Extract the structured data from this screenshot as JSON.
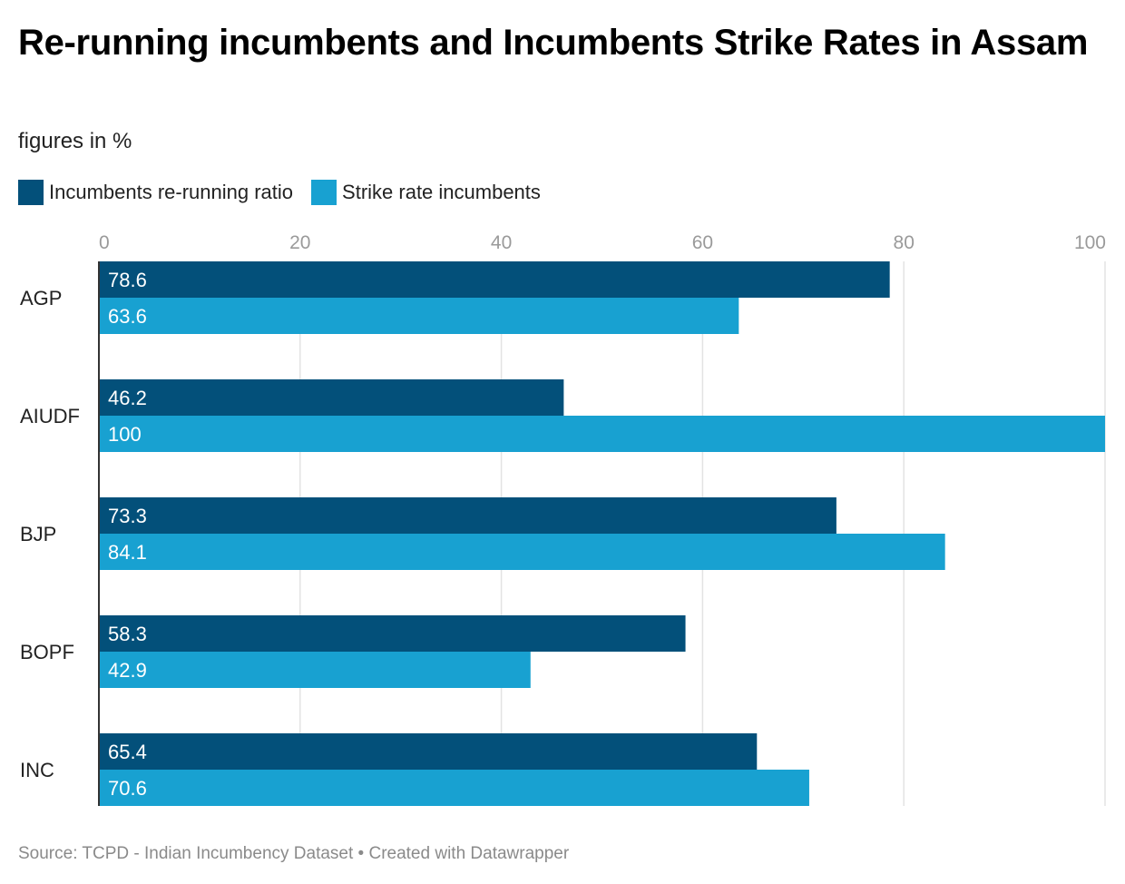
{
  "header": {
    "title": "Re-running incumbents and Incumbents Strike Rates in Assam",
    "subtitle": "figures in %"
  },
  "legend": {
    "items": [
      {
        "label": "Incumbents re-running ratio",
        "color": "#03507a"
      },
      {
        "label": "Strike rate incumbents",
        "color": "#18a1d1"
      }
    ]
  },
  "footer": {
    "source": "Source: TCPD - Indian Incumbency Dataset • Created with Datawrapper"
  },
  "chart_data": {
    "type": "bar",
    "orientation": "horizontal",
    "title": "Re-running incumbents and Incumbents Strike Rates in Assam",
    "subtitle": "figures in %",
    "categories": [
      "AGP",
      "AIUDF",
      "BJP",
      "BOPF",
      "INC"
    ],
    "series": [
      {
        "name": "Incumbents re-running ratio",
        "color": "#03507a",
        "values": [
          78.6,
          46.2,
          73.3,
          58.3,
          65.4
        ]
      },
      {
        "name": "Strike rate incumbents",
        "color": "#18a1d1",
        "values": [
          63.6,
          100,
          84.1,
          42.9,
          70.6
        ]
      }
    ],
    "xlim": [
      0,
      100
    ],
    "xticks": [
      0,
      20,
      40,
      60,
      80,
      100
    ],
    "xlabel": "",
    "ylabel": "",
    "grid": true,
    "legend_position": "top-left"
  }
}
